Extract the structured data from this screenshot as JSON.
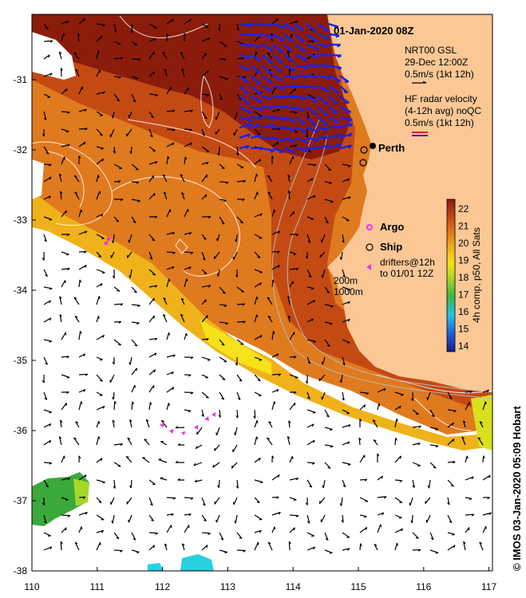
{
  "map": {
    "title": "01-Jan-2020 08Z",
    "place_label": "Perth",
    "x_ticks": [
      "110",
      "111",
      "112",
      "113",
      "114",
      "115",
      "116",
      "117"
    ],
    "y_ticks": [
      "-31",
      "-32",
      "-33",
      "-34",
      "-35",
      "-36",
      "-37",
      "-38"
    ],
    "legend": {
      "gsl_line1": "NRT00 GSL",
      "gsl_line2": "29-Dec 12:00Z",
      "gsl_line3": "0.5m/s (1kt 12h)",
      "hf_line1": "HF radar velocity",
      "hf_line2": "(4-12h avg) noQC",
      "hf_line3": "0.5m/s (1kt 12h)",
      "argo": "Argo",
      "ship": "Ship",
      "drifters_line1": "drifters@12h",
      "drifters_line2": "to 01/01 12Z",
      "depth1": "200m",
      "depth2": "1000m"
    },
    "colorbar": {
      "ticks": [
        "22",
        "21",
        "20",
        "19",
        "18",
        "17",
        "16",
        "15",
        "14"
      ],
      "label": "4h comp, p50, All Sats"
    },
    "credit": "© IMOS 03-Jan-2020 05:09 Hobart",
    "colors": {
      "land": "#fbc795",
      "hot": "#8b1c0b",
      "warm": "#c44a14",
      "mid": "#e07a1e",
      "cool": "#f0b21a",
      "cold_yellow": "#f6e21a",
      "green": "#3aa83a",
      "cyan": "#29d0e0",
      "hf_vector": "#1a22ee",
      "drifter": "#e838e0"
    }
  }
}
